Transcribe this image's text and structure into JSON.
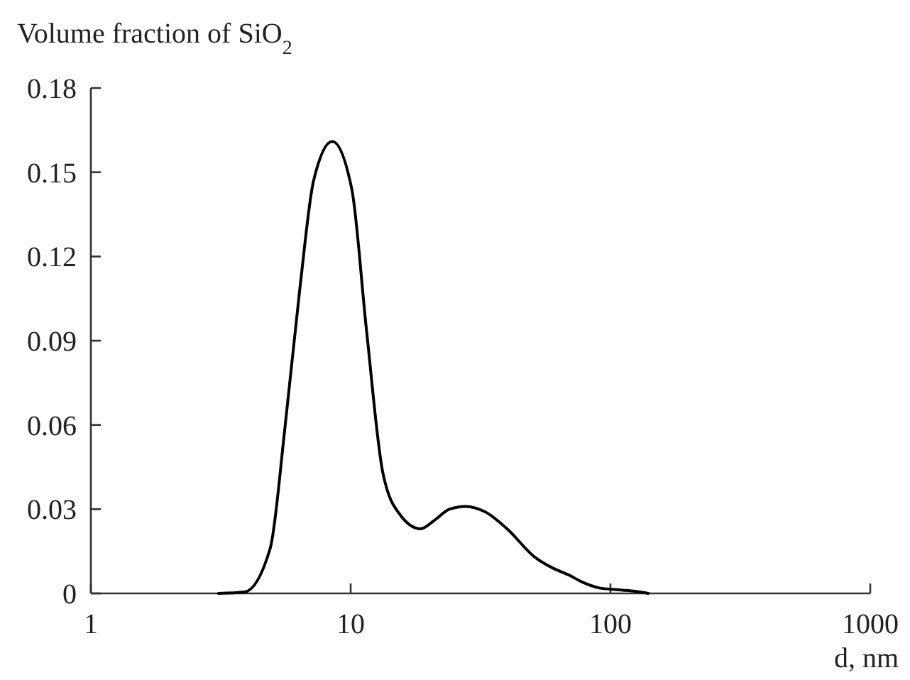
{
  "chart_data": {
    "type": "line",
    "title": "Volume fraction of SiO$_{2}$",
    "xlabel": "d, nm",
    "log": "x",
    "xlim": [
      1,
      1000
    ],
    "xticks": [
      1,
      10,
      100,
      1000
    ],
    "ylim": [
      0,
      0.18
    ],
    "yticks": [
      0,
      0.03,
      0.06,
      0.09,
      0.12,
      0.15,
      0.18
    ],
    "grid": false,
    "marker": "none",
    "line_style": "solid",
    "series": [
      {
        "color": "#000000",
        "x": [
          3.1,
          3.9,
          4.9,
          5.6,
          6.4,
          7.2,
          8.5,
          10.1,
          11.5,
          13.3,
          15.5,
          18.6,
          21,
          24,
          27.7,
          33,
          40,
          51,
          60,
          69,
          78,
          90,
          100,
          123,
          140
        ],
        "values": [
          0,
          0.0005,
          0.016,
          0.06,
          0.11,
          0.147,
          0.161,
          0.144,
          0.094,
          0.043,
          0.028,
          0.023,
          0.026,
          0.03,
          0.031,
          0.029,
          0.023,
          0.013,
          0.009,
          0.0066,
          0.004,
          0.002,
          0.0015,
          0.0008,
          0
        ]
      }
    ]
  }
}
